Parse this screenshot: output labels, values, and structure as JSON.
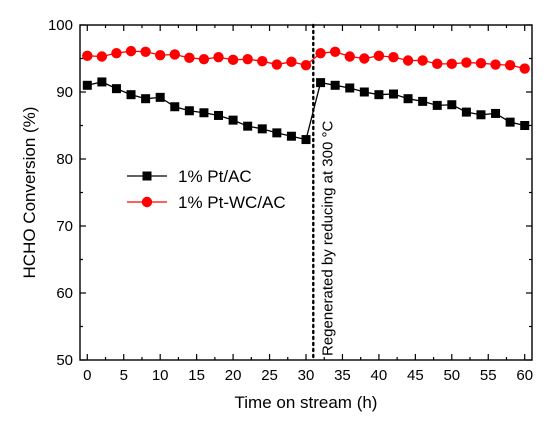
{
  "chart_data": {
    "type": "line",
    "xlabel": "Time on stream (h)",
    "ylabel": "HCHO Conversion (%)",
    "xlim": [
      -1,
      61
    ],
    "ylim": [
      50,
      100
    ],
    "xticks": [
      0,
      5,
      10,
      15,
      20,
      25,
      30,
      35,
      40,
      45,
      50,
      55,
      60
    ],
    "yticks": [
      50,
      60,
      70,
      80,
      90,
      100
    ],
    "legend_position": "center-left",
    "series": [
      {
        "name": "1% Pt/AC",
        "color": "#000000",
        "marker": "square",
        "segments": [
          {
            "x": [
              0,
              2,
              4,
              6,
              8,
              10,
              12,
              14,
              16,
              18,
              20,
              22,
              24,
              26,
              28,
              30
            ],
            "y": [
              91.0,
              91.5,
              90.5,
              89.6,
              89.0,
              89.2,
              87.8,
              87.2,
              86.9,
              86.5,
              85.8,
              84.9,
              84.5,
              83.9,
              83.4,
              82.9
            ]
          },
          {
            "x": [
              32,
              34,
              36,
              38,
              40,
              42,
              44,
              46,
              48,
              50,
              52,
              54,
              56,
              58,
              60
            ],
            "y": [
              91.4,
              91.0,
              90.6,
              90.0,
              89.6,
              89.7,
              89.0,
              88.6,
              88.0,
              88.1,
              87.0,
              86.6,
              86.8,
              85.5,
              85.0
            ]
          }
        ]
      },
      {
        "name": "1% Pt-WC/AC",
        "color": "#ff0000",
        "marker": "circle",
        "segments": [
          {
            "x": [
              0,
              2,
              4,
              6,
              8,
              10,
              12,
              14,
              16,
              18,
              20,
              22,
              24,
              26,
              28,
              30
            ],
            "y": [
              95.4,
              95.3,
              95.8,
              96.1,
              96.0,
              95.5,
              95.6,
              95.1,
              94.9,
              95.2,
              94.8,
              94.9,
              94.6,
              94.1,
              94.5,
              94.0
            ]
          },
          {
            "x": [
              32,
              34,
              36,
              38,
              40,
              42,
              44,
              46,
              48,
              50,
              52,
              54,
              56,
              58,
              60
            ],
            "y": [
              95.8,
              96.0,
              95.3,
              95.0,
              95.4,
              95.2,
              94.7,
              94.7,
              94.2,
              94.2,
              94.4,
              94.3,
              94.1,
              94.0,
              93.5
            ]
          }
        ]
      }
    ],
    "annotation": {
      "x": 31,
      "style": "dotted-vertical-line",
      "text": "Regenerated by reducing at 300 °C"
    }
  }
}
